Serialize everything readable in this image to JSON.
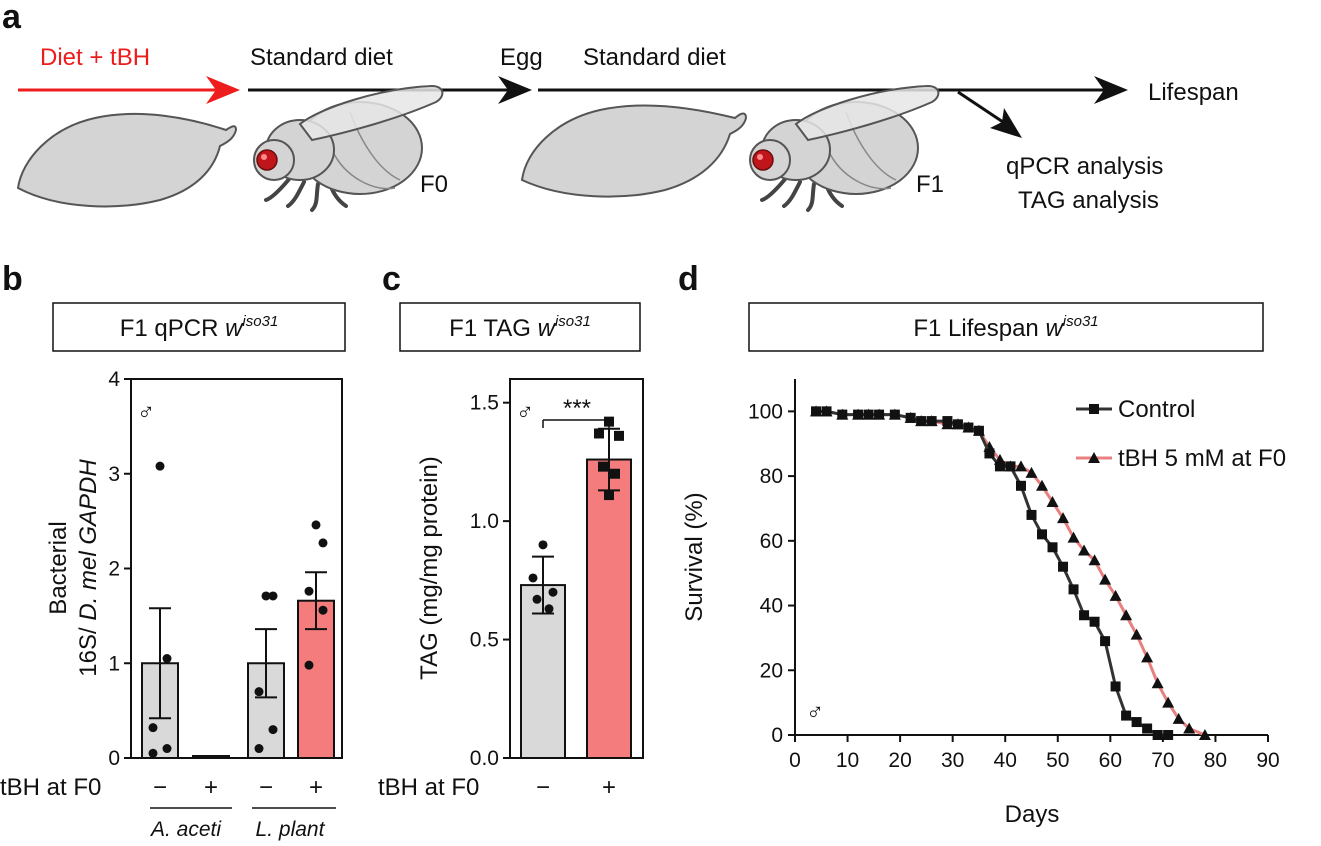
{
  "panel_a": {
    "label": "a",
    "diet_tbh": "Diet + tBH",
    "standard_diet_1": "Standard diet",
    "egg": "Egg",
    "standard_diet_2": "Standard diet",
    "lifespan": "Lifespan",
    "f0": "F0",
    "f1": "F1",
    "qpcr_analysis": "qPCR analysis",
    "tag_analysis": "TAG analysis",
    "colors": {
      "red_arrow": "#ee1c1c",
      "black_arrow": "#111111",
      "fly_body": "#d4d4d4",
      "fly_eye": "#c0161b"
    }
  },
  "panel_b_labels": {
    "label": "b",
    "title_prefix": "F1 qPCR ",
    "title_w": "w",
    "title_sup": "iso31",
    "male_symbol": "♂",
    "ylabel_line1": "Bacterial",
    "ylabel_line2_a": "16S/ ",
    "ylabel_line2_b": "D. mel GAPDH",
    "tbh_label": "tBH at F0",
    "minus": "−",
    "plus": "+",
    "group1": "A. aceti",
    "group2": "L. plant"
  },
  "panel_c_labels": {
    "label": "c",
    "title_prefix": "F1 TAG ",
    "title_w": "w",
    "title_sup": "iso31",
    "male_symbol": "♂",
    "significance": "***",
    "tbh_label": "tBH at F0",
    "minus": "−",
    "plus": "+"
  },
  "panel_d_labels": {
    "label": "d",
    "title_prefix": "F1 Lifespan ",
    "title_w": "w",
    "title_sup": "iso31",
    "male_symbol": "♂"
  },
  "chart_data": [
    {
      "id": "b",
      "type": "bar",
      "ylabel": "Bacterial 16S/ D. mel GAPDH",
      "ylim": [
        0,
        4
      ],
      "yticks": [
        0,
        1,
        2,
        3,
        4
      ],
      "categories": [
        "A. aceti −",
        "A. aceti +",
        "L. plant −",
        "L. plant +"
      ],
      "values": [
        1.0,
        0.0,
        1.0,
        1.66
      ],
      "errors": [
        0.58,
        0.0,
        0.36,
        0.3
      ],
      "bar_colors": [
        "#d9d9d9",
        "#f08080",
        "#d9d9d9",
        "#f47c7c"
      ],
      "points": [
        [
          3.08,
          1.05,
          0.32,
          0.1,
          0.05
        ],
        [],
        [
          1.71,
          1.71,
          0.7,
          0.3,
          0.1
        ],
        [
          2.46,
          2.27,
          1.76,
          1.56,
          0.98
        ]
      ]
    },
    {
      "id": "c",
      "type": "bar",
      "ylabel": "TAG (mg/mg protein)",
      "ylim": [
        0,
        1.6
      ],
      "yticks": [
        "0.0",
        "0.5",
        "1.0",
        "1.5"
      ],
      "categories": [
        "−",
        "+"
      ],
      "values": [
        0.73,
        1.26
      ],
      "errors": [
        0.12,
        0.13
      ],
      "bar_colors": [
        "#d9d9d9",
        "#f47c7c"
      ],
      "points": [
        [
          0.9,
          0.76,
          0.7,
          0.67,
          0.63
        ],
        [
          1.42,
          1.37,
          1.36,
          1.23,
          1.2,
          1.11
        ]
      ]
    },
    {
      "id": "d",
      "type": "line",
      "xlabel": "Days",
      "ylabel": "Survival (%)",
      "xlim": [
        0,
        90
      ],
      "ylim": [
        0,
        110
      ],
      "xticks": [
        0,
        10,
        20,
        30,
        40,
        50,
        60,
        70,
        80,
        90
      ],
      "yticks": [
        0,
        20,
        40,
        60,
        80,
        100
      ],
      "series": [
        {
          "name": "Control",
          "color": "#333333",
          "marker": "square",
          "x": [
            4,
            6,
            9,
            12,
            14,
            16,
            19,
            22,
            24,
            26,
            29,
            31,
            33,
            35,
            37,
            39,
            41,
            43,
            45,
            47,
            49,
            51,
            53,
            55,
            57,
            59,
            61,
            63,
            65,
            67,
            69,
            71
          ],
          "y": [
            100,
            100,
            99,
            99,
            99,
            99,
            99,
            98,
            97,
            97,
            97,
            96,
            95,
            94,
            87,
            83,
            83,
            77,
            68,
            62,
            58,
            52,
            45,
            37,
            35,
            29,
            15,
            6,
            4,
            2,
            0,
            0
          ]
        },
        {
          "name": "tBH 5 mM at F0",
          "color": "#e88080",
          "marker": "triangle",
          "x": [
            4,
            6,
            9,
            12,
            14,
            16,
            19,
            22,
            24,
            26,
            29,
            31,
            33,
            35,
            37,
            39,
            41,
            43,
            45,
            47,
            49,
            51,
            53,
            55,
            57,
            59,
            61,
            63,
            65,
            67,
            69,
            71,
            73,
            75,
            78
          ],
          "y": [
            100,
            100,
            99,
            99,
            99,
            99,
            99,
            98,
            97,
            97,
            96,
            96,
            95,
            94,
            89,
            85,
            83,
            83,
            81,
            77,
            72,
            67,
            61,
            57,
            54,
            48,
            43,
            37,
            31,
            24,
            16,
            10,
            5,
            2,
            0
          ]
        }
      ]
    }
  ]
}
